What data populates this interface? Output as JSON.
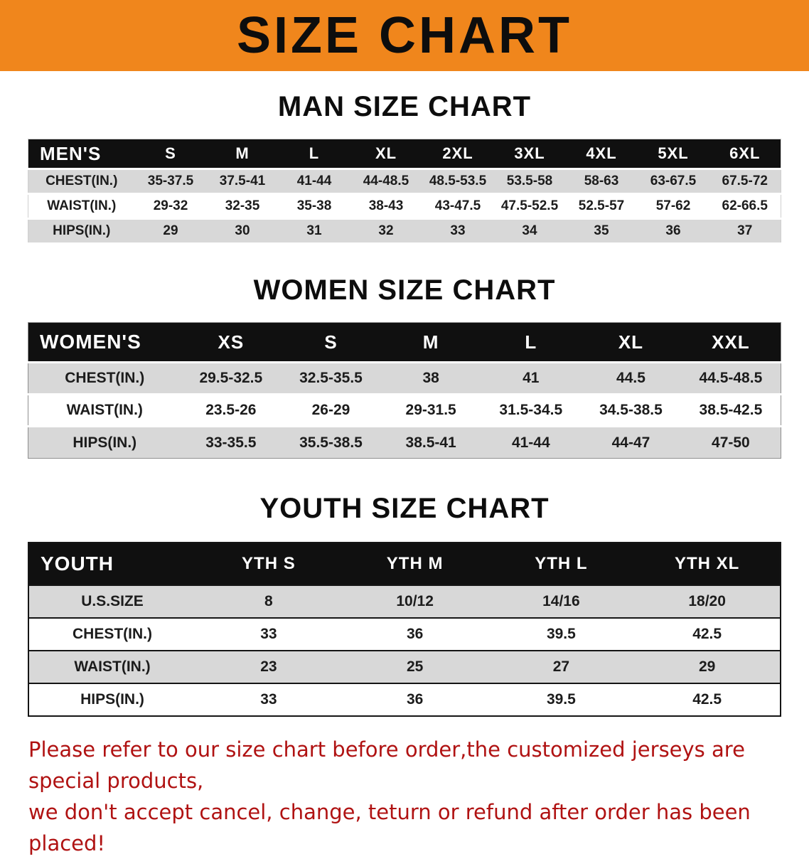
{
  "banner": {
    "title": "SIZE CHART"
  },
  "sections": {
    "men": {
      "heading": "MAN SIZE CHART"
    },
    "women": {
      "heading": "WOMEN SIZE CHART"
    },
    "youth": {
      "heading": "YOUTH SIZE CHART"
    }
  },
  "tables": {
    "men": {
      "header": [
        "MEN'S",
        "S",
        "M",
        "L",
        "XL",
        "2XL",
        "3XL",
        "4XL",
        "5XL",
        "6XL"
      ],
      "rows": [
        [
          "CHEST(IN.)",
          "35-37.5",
          "37.5-41",
          "41-44",
          "44-48.5",
          "48.5-53.5",
          "53.5-58",
          "58-63",
          "63-67.5",
          "67.5-72"
        ],
        [
          "WAIST(IN.)",
          "29-32",
          "32-35",
          "35-38",
          "38-43",
          "43-47.5",
          "47.5-52.5",
          "52.5-57",
          "57-62",
          "62-66.5"
        ],
        [
          "HIPS(IN.)",
          "29",
          "30",
          "31",
          "32",
          "33",
          "34",
          "35",
          "36",
          "37"
        ]
      ]
    },
    "women": {
      "header": [
        "WOMEN'S",
        "XS",
        "S",
        "M",
        "L",
        "XL",
        "XXL"
      ],
      "rows": [
        [
          "CHEST(IN.)",
          "29.5-32.5",
          "32.5-35.5",
          "38",
          "41",
          "44.5",
          "44.5-48.5"
        ],
        [
          "WAIST(IN.)",
          "23.5-26",
          "26-29",
          "29-31.5",
          "31.5-34.5",
          "34.5-38.5",
          "38.5-42.5"
        ],
        [
          "HIPS(IN.)",
          "33-35.5",
          "35.5-38.5",
          "38.5-41",
          "41-44",
          "44-47",
          "47-50"
        ]
      ]
    },
    "youth": {
      "header": [
        "YOUTH",
        "YTH S",
        "YTH M",
        "YTH L",
        "YTH XL"
      ],
      "rows": [
        [
          "U.S.SIZE",
          "8",
          "10/12",
          "14/16",
          "18/20"
        ],
        [
          "CHEST(IN.)",
          "33",
          "36",
          "39.5",
          "42.5"
        ],
        [
          "WAIST(IN.)",
          "23",
          "25",
          "27",
          "29"
        ],
        [
          "HIPS(IN.)",
          "33",
          "36",
          "39.5",
          "42.5"
        ]
      ]
    }
  },
  "note": {
    "line1": "Please refer to our size chart before order,the customized jerseys are special products,",
    "line2": "we don't accept cancel, change, teturn or refund after order has been placed!"
  },
  "colors": {
    "banner_bg": "#f0861c",
    "header_bg": "#101010",
    "row_shade": "#d8d8d8",
    "note_text": "#b01212"
  }
}
